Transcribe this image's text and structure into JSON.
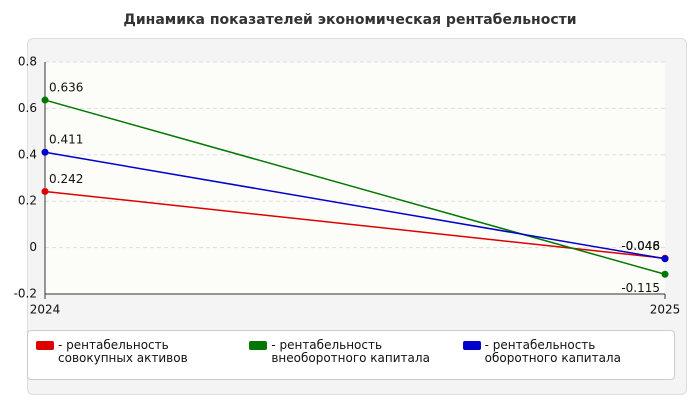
{
  "chart_data": {
    "type": "line",
    "title": "Динамика показателей экономическая рентабельности",
    "categories": [
      "2024",
      "2025"
    ],
    "series": [
      {
        "name": "- рентабельность совокупных активов",
        "color": "#dd0000",
        "values": [
          0.242,
          -0.046
        ]
      },
      {
        "name": "- рентабельность внеоборотного капитала",
        "color": "#007700",
        "values": [
          0.636,
          -0.115
        ]
      },
      {
        "name": "- рентабельность оборотного капитала",
        "color": "#0000cc",
        "values": [
          0.411,
          -0.048
        ]
      }
    ],
    "ylim": [
      -0.2,
      0.8
    ],
    "yticks": [
      -0.2,
      0,
      0.2,
      0.4,
      0.6,
      0.8
    ],
    "grid": true,
    "legend": "bottom"
  }
}
